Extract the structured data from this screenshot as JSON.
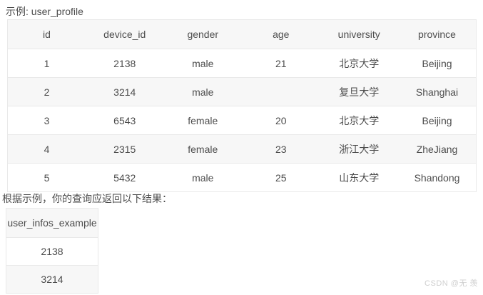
{
  "page": {
    "example_label": "示例: user_profile",
    "result_label": "根据示例，你的查询应返回以下结果：",
    "watermark": "CSDN @无 羡"
  },
  "profile_table": {
    "columns": [
      "id",
      "device_id",
      "gender",
      "age",
      "university",
      "province"
    ],
    "rows": [
      [
        "1",
        "2138",
        "male",
        "21",
        "北京大学",
        "Beijing"
      ],
      [
        "2",
        "3214",
        "male",
        "",
        "复旦大学",
        "Shanghai"
      ],
      [
        "3",
        "6543",
        "female",
        "20",
        "北京大学",
        "Beijing"
      ],
      [
        "4",
        "2315",
        "female",
        "23",
        "浙江大学",
        "ZheJiang"
      ],
      [
        "5",
        "5432",
        "male",
        "25",
        "山东大学",
        "Shandong"
      ]
    ]
  },
  "result_table": {
    "columns": [
      "user_infos_example"
    ],
    "rows": [
      [
        "2138"
      ],
      [
        "3214"
      ]
    ]
  },
  "colors": {
    "header_bg": "#f7f7f7",
    "stripe_bg": "#f7f7f7",
    "border": "#e9e9e9",
    "text": "#4d4d4d",
    "watermark": "#cfcfcf"
  }
}
